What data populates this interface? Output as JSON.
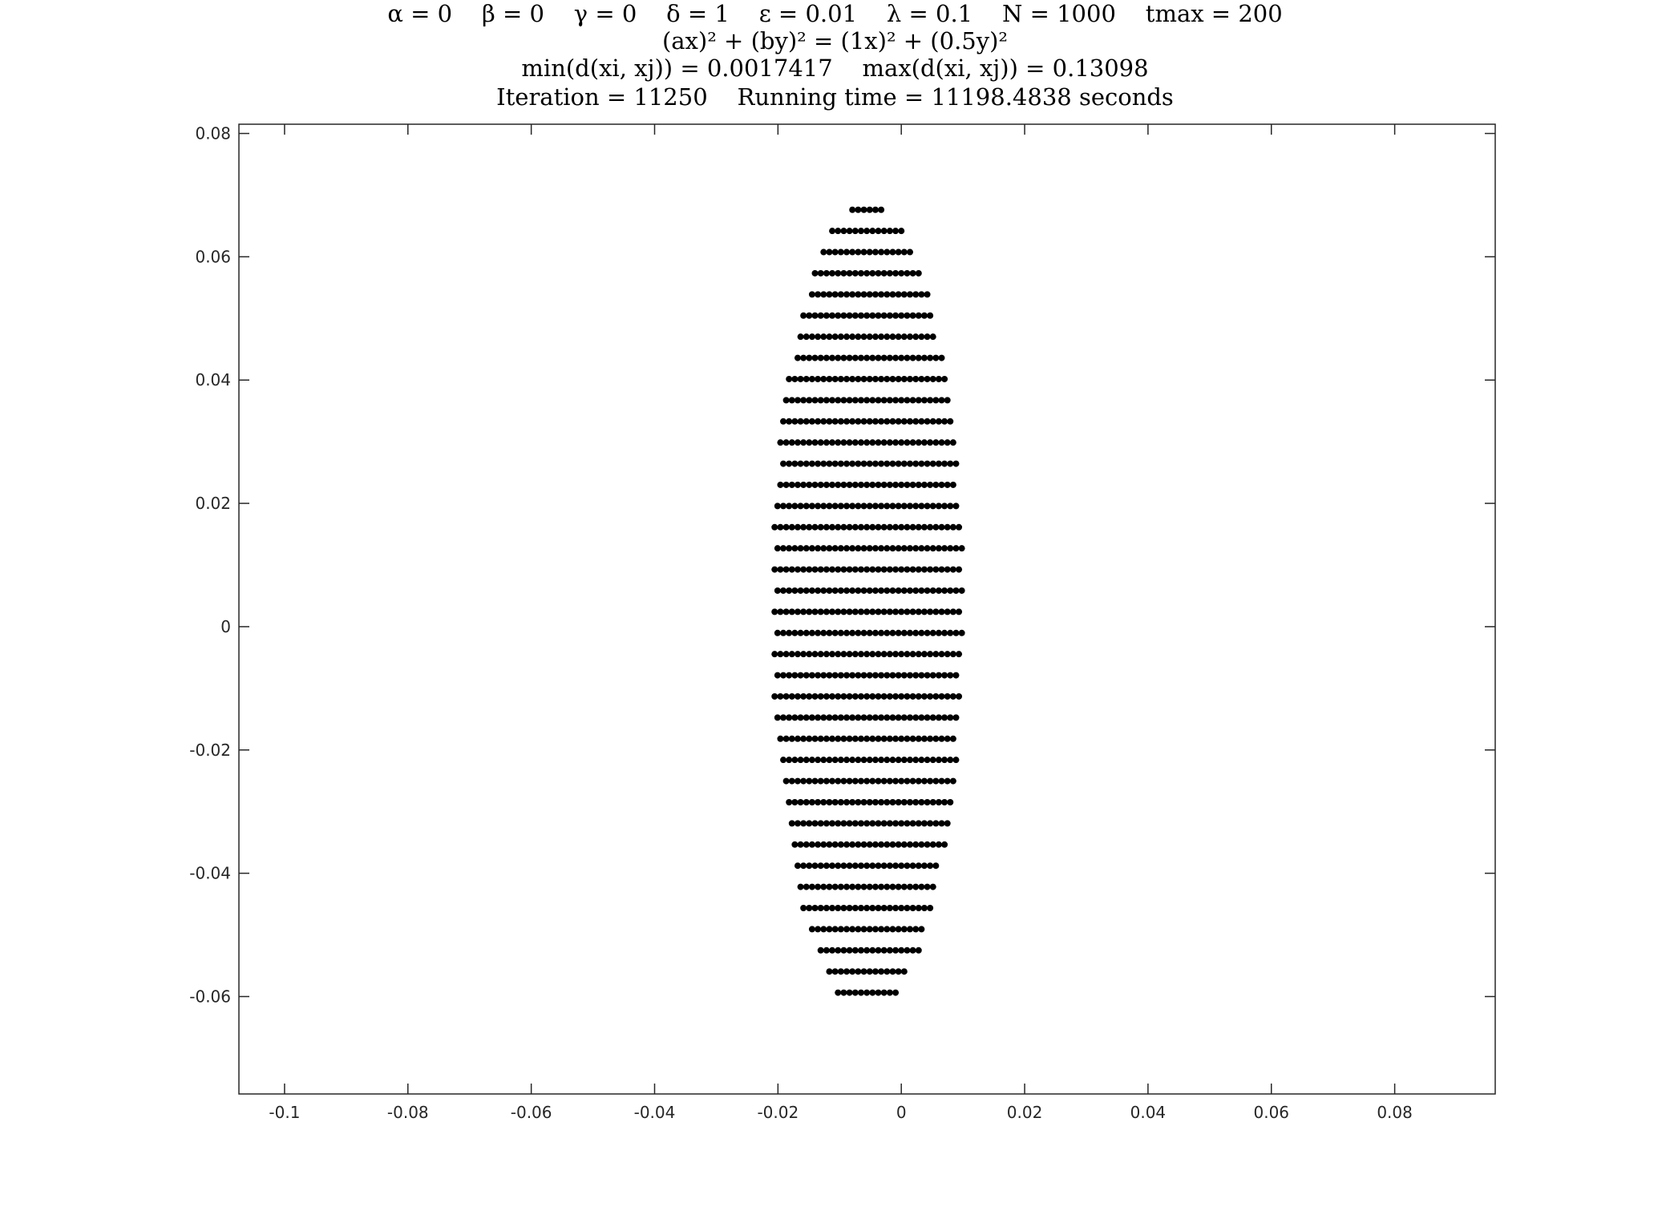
{
  "figure": {
    "title_lines": [
      "α = 0    β = 0    γ = 0    δ = 1    ε = 0.01    λ = 0.1    N = 1000    tmax = 200",
      "(ax)² + (by)² = (1x)² + (0.5y)²",
      "min(d(xi, xj)) = 0.0017417    max(d(xi, xj)) = 0.13098",
      "Iteration = 11250    Running time = 11198.4838 seconds"
    ]
  },
  "chart_data": {
    "type": "scatter",
    "title": "α = 0 β = 0 γ = 0 δ = 1 ε = 0.01 λ = 0.1 N = 1000 tmax = 200 / (ax)² + (by)² = (1x)² + (0.5y)² / min(d(xi, xj)) = 0.0017417 max(d(xi, xj)) = 0.13098 / Iteration = 11250 Running time = 11198.4838 seconds",
    "xlabel": "",
    "ylabel": "",
    "xlim": [
      -0.1074,
      0.0963
    ],
    "ylim": [
      -0.0758,
      0.0815
    ],
    "xticks": [
      -0.1,
      -0.08,
      -0.06,
      -0.04,
      -0.02,
      0,
      0.02,
      0.04,
      0.06,
      0.08
    ],
    "xtick_labels": [
      "-0.1",
      "-0.08",
      "-0.06",
      "-0.04",
      "-0.02",
      "0",
      "0.02",
      "0.04",
      "0.06",
      "0.08"
    ],
    "yticks": [
      -0.06,
      -0.04,
      -0.02,
      0,
      0.02,
      0.04,
      0.06,
      0.08
    ],
    "ytick_labels": [
      "-0.06",
      "-0.04",
      "-0.02",
      "0",
      "0.02",
      "0.04",
      "0.06",
      "0.08"
    ],
    "grid": false,
    "marker_color": "#000000",
    "axis_color": "#262626",
    "point_cloud": {
      "description_shape": "ellipse",
      "n_points": 1000,
      "center": [
        -0.0055,
        0.003
      ],
      "semi_axis_x": 0.0155,
      "semi_axis_y": 0.0658
    }
  }
}
